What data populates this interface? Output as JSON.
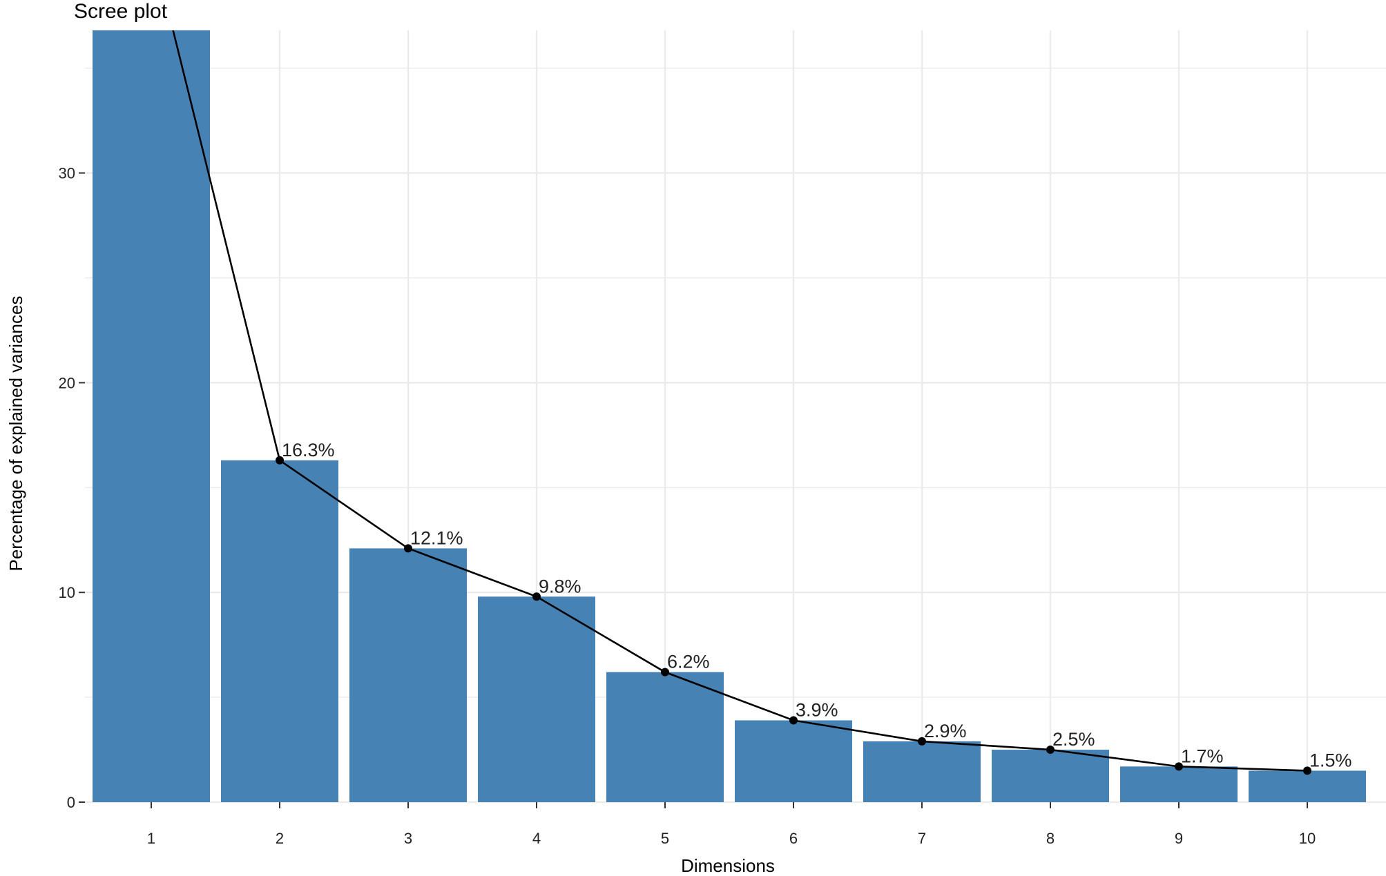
{
  "chart_data": {
    "type": "bar",
    "title": "Scree plot",
    "xlabel": "Dimensions",
    "ylabel": "Percentage of explained variances",
    "categories": [
      "1",
      "2",
      "3",
      "4",
      "5",
      "6",
      "7",
      "8",
      "9",
      "10"
    ],
    "values": [
      41.0,
      16.3,
      12.1,
      9.8,
      6.2,
      3.9,
      2.9,
      2.5,
      1.7,
      1.5
    ],
    "value_labels": [
      "",
      "16.3%",
      "12.1%",
      "9.8%",
      "6.2%",
      "3.9%",
      "2.9%",
      "2.5%",
      "1.7%",
      "1.5%"
    ],
    "ylim": [
      0,
      36.8
    ],
    "yticks": [
      0,
      10,
      20,
      30
    ],
    "ytick_labels": [
      "0",
      "10",
      "20",
      "30"
    ],
    "grid": true,
    "overlay_line": true,
    "colors": {
      "bar": "#4682B4",
      "line": "#000000",
      "grid": "#EBEBEB",
      "text": "#222222"
    }
  }
}
